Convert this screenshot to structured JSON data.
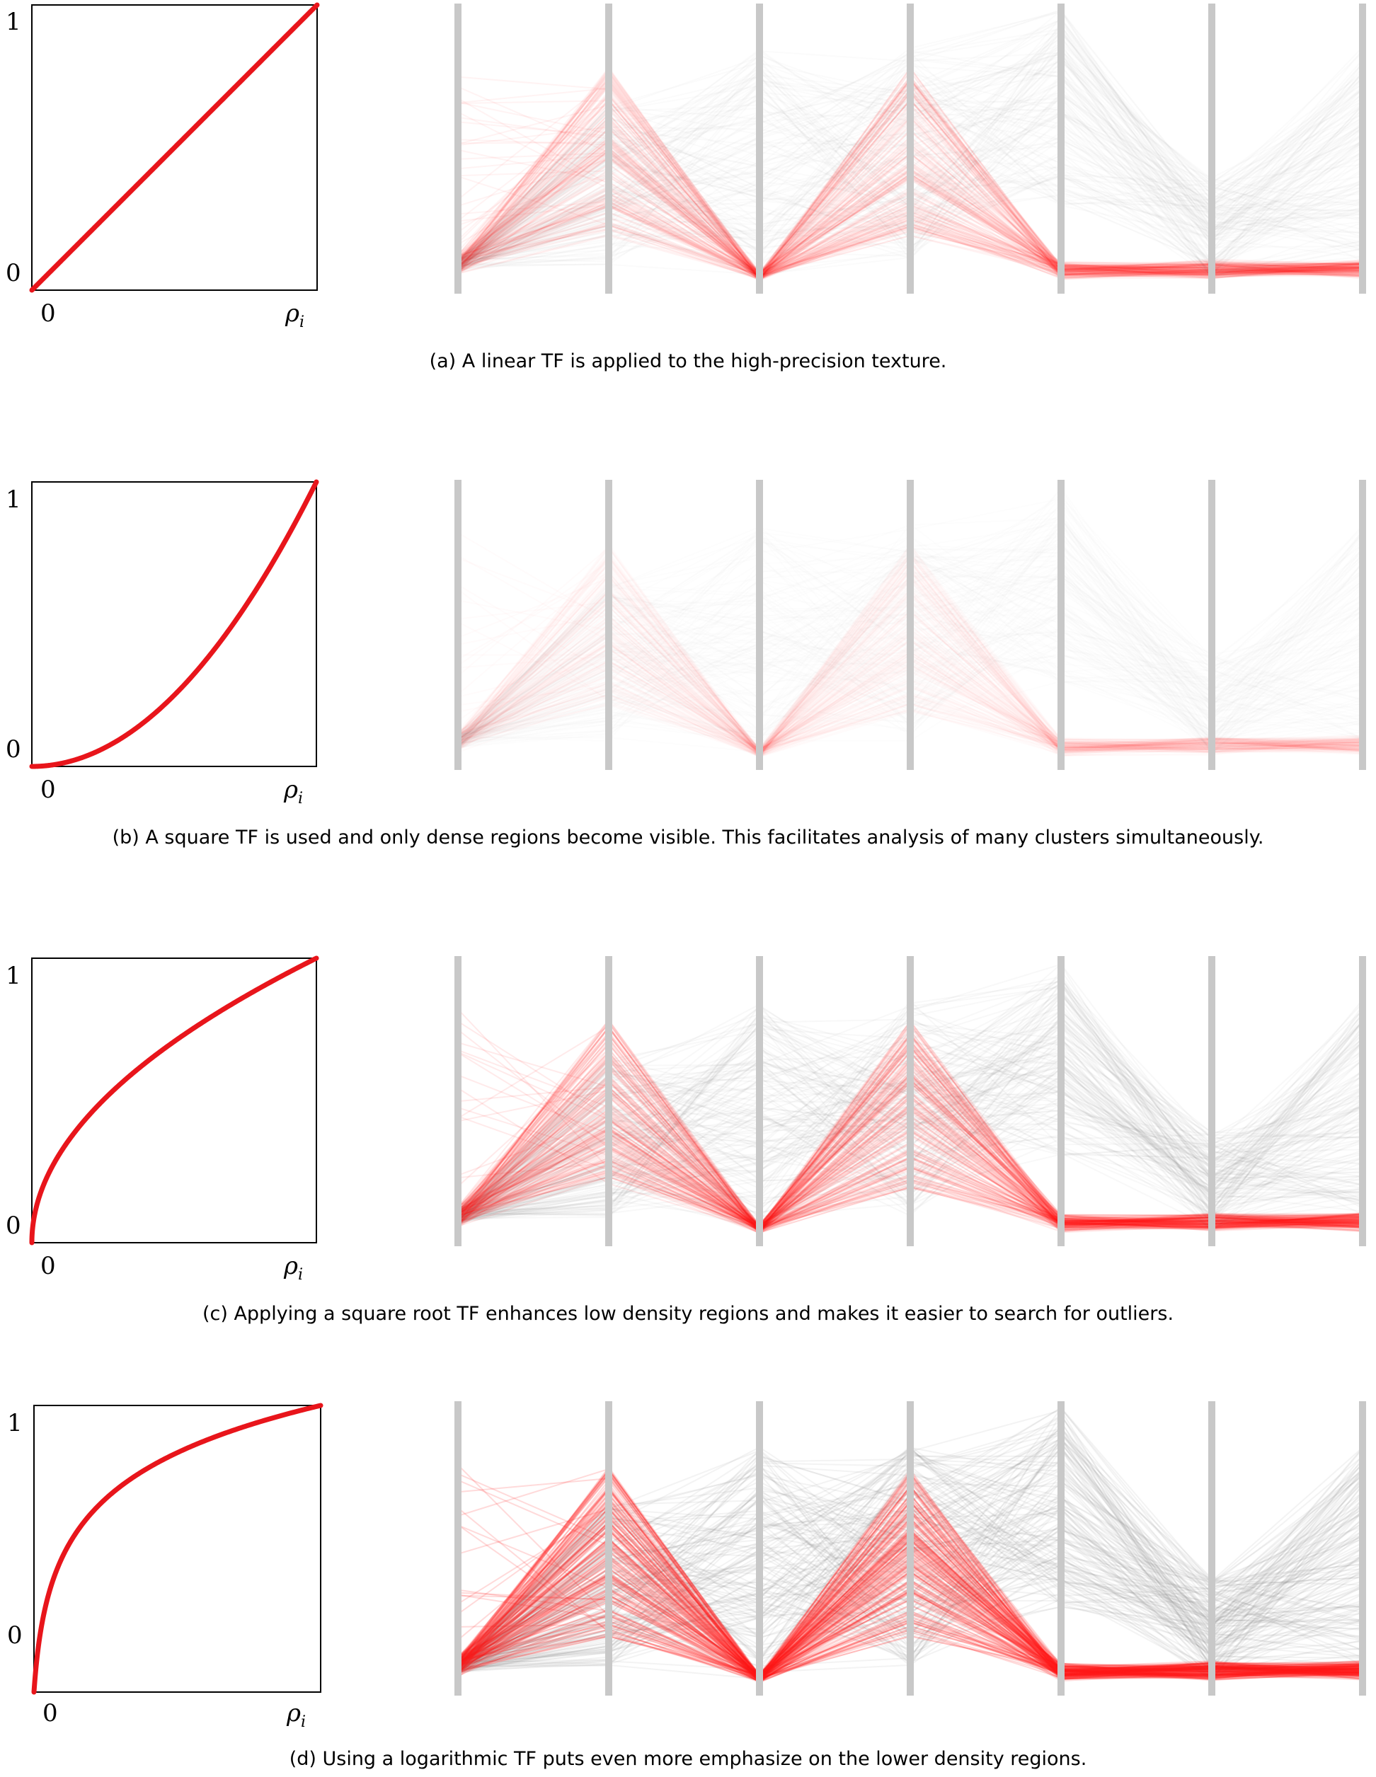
{
  "panels": [
    {
      "id": "a",
      "tf": "linear",
      "tick_x0": "0",
      "tick_y0": "0",
      "tick_y1": "1",
      "x_symbol": "ρ",
      "x_subscript": "i",
      "red_opacity": 0.05,
      "gray_opacity": 0.035,
      "caption": "(a) A linear TF is applied to the high-precision texture."
    },
    {
      "id": "b",
      "tf": "square",
      "tick_x0": "0",
      "tick_y0": "0",
      "tick_y1": "1",
      "x_symbol": "ρ",
      "x_subscript": "i",
      "red_opacity": 0.018,
      "gray_opacity": 0.014,
      "caption": "(b) A square TF is used and only dense regions become visible. This facilitates analysis of many clusters simultaneously."
    },
    {
      "id": "c",
      "tf": "sqrt",
      "tick_x0": "0",
      "tick_y0": "0",
      "tick_y1": "1",
      "x_symbol": "ρ",
      "x_subscript": "i",
      "red_opacity": 0.09,
      "gray_opacity": 0.06,
      "caption": "(c) Applying a square root TF enhances low density regions and makes it easier to search for outliers."
    },
    {
      "id": "d",
      "tf": "log",
      "tick_x0": "0",
      "tick_y0": "0",
      "tick_y1": "1",
      "x_symbol": "ρ",
      "x_subscript": "i",
      "red_opacity": 0.16,
      "gray_opacity": 0.1,
      "caption": "(d) Using a logarithmic TF puts even more emphasize on the lower density regions."
    }
  ],
  "colors": {
    "curve": "#e8151b",
    "red_lines": "#ff1a1a",
    "gray_lines": "#8c8c8c",
    "axis_bar": "#c8c8c8"
  }
}
